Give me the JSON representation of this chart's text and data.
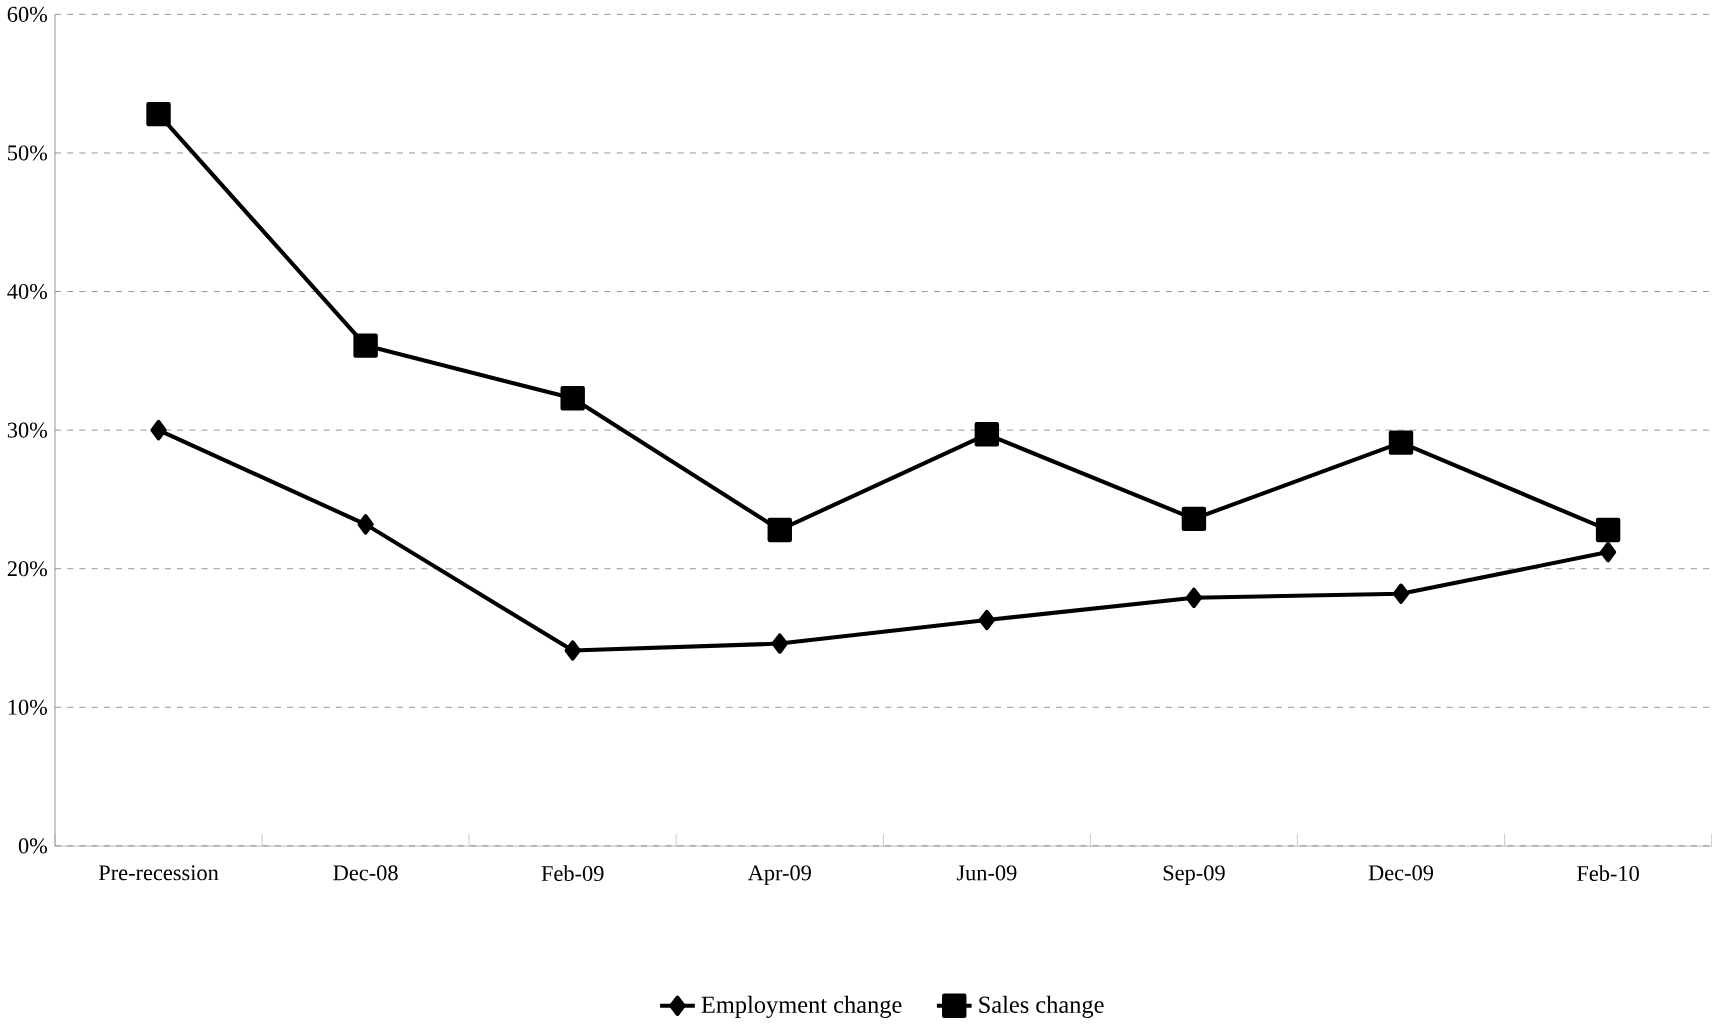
{
  "chart_data": {
    "type": "line",
    "categories": [
      "Pre-recession",
      "Dec-08",
      "Feb-09",
      "Apr-09",
      "Jun-09",
      "Sep-09",
      "Dec-09",
      "Feb-10"
    ],
    "series": [
      {
        "name": "Employment change",
        "color": "#000000",
        "marker": "diamond",
        "values": [
          30,
          23.2,
          14.1,
          14.6,
          16.3,
          17.9,
          18.2,
          21.2
        ]
      },
      {
        "name": "Sales change",
        "color": "#000000",
        "marker": "square",
        "values": [
          52.8,
          36.1,
          32.3,
          22.8,
          29.7,
          23.6,
          29.1,
          22.8
        ]
      }
    ],
    "ylim": [
      0,
      60
    ],
    "yticks": [
      {
        "value": 0,
        "label": "0%"
      },
      {
        "value": 10,
        "label": "10%"
      },
      {
        "value": 20,
        "label": "20%"
      },
      {
        "value": 30,
        "label": "30%"
      },
      {
        "value": 40,
        "label": "40%"
      },
      {
        "value": 50,
        "label": "50%"
      },
      {
        "value": 60,
        "label": "60%"
      }
    ],
    "grid": "y",
    "legend": "bottom",
    "line_style": "solid"
  }
}
